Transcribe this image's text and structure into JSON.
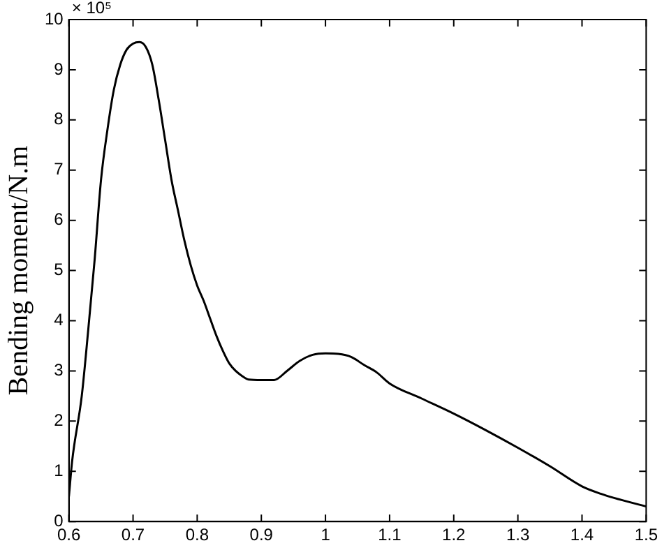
{
  "chart_data": {
    "type": "line",
    "ylabel": "Bending moment/N.m",
    "annotations": [
      "× 10⁵"
    ],
    "x": [
      0.6,
      0.605,
      0.62,
      0.63,
      0.64,
      0.65,
      0.66,
      0.67,
      0.68,
      0.69,
      0.7,
      0.71,
      0.72,
      0.73,
      0.74,
      0.75,
      0.76,
      0.77,
      0.78,
      0.79,
      0.8,
      0.81,
      0.82,
      0.83,
      0.84,
      0.85,
      0.86,
      0.87,
      0.88,
      0.9,
      0.92,
      0.94,
      0.96,
      0.98,
      1.0,
      1.02,
      1.04,
      1.06,
      1.08,
      1.1,
      1.15,
      1.2,
      1.25,
      1.3,
      1.35,
      1.4,
      1.43,
      1.45,
      1.5
    ],
    "series": [
      {
        "color": "#000000",
        "values": [
          0.5,
          1.2,
          2.5,
          3.8,
          5.2,
          6.8,
          7.8,
          8.6,
          9.1,
          9.4,
          9.52,
          9.55,
          9.45,
          9.1,
          8.4,
          7.6,
          6.8,
          6.2,
          5.6,
          5.1,
          4.7,
          4.4,
          4.05,
          3.7,
          3.4,
          3.15,
          3.0,
          2.9,
          2.83,
          2.82,
          2.82,
          3.0,
          3.2,
          3.32,
          3.35,
          3.34,
          3.28,
          3.12,
          2.97,
          2.75,
          2.45,
          2.15,
          1.82,
          1.47,
          1.1,
          0.7,
          0.55,
          0.47,
          0.3
        ]
      }
    ],
    "xlim": [
      0.6,
      1.5
    ],
    "xticks": [
      0.6,
      0.7,
      0.8,
      0.9,
      1,
      1.1,
      1.2,
      1.3,
      1.4,
      1.5
    ],
    "ylim": [
      0,
      10
    ],
    "yticks": [
      0,
      1,
      2,
      3,
      4,
      5,
      6,
      7,
      8,
      9,
      10
    ],
    "grid": false,
    "legend": false,
    "marker": "none",
    "line_style": "solid"
  }
}
